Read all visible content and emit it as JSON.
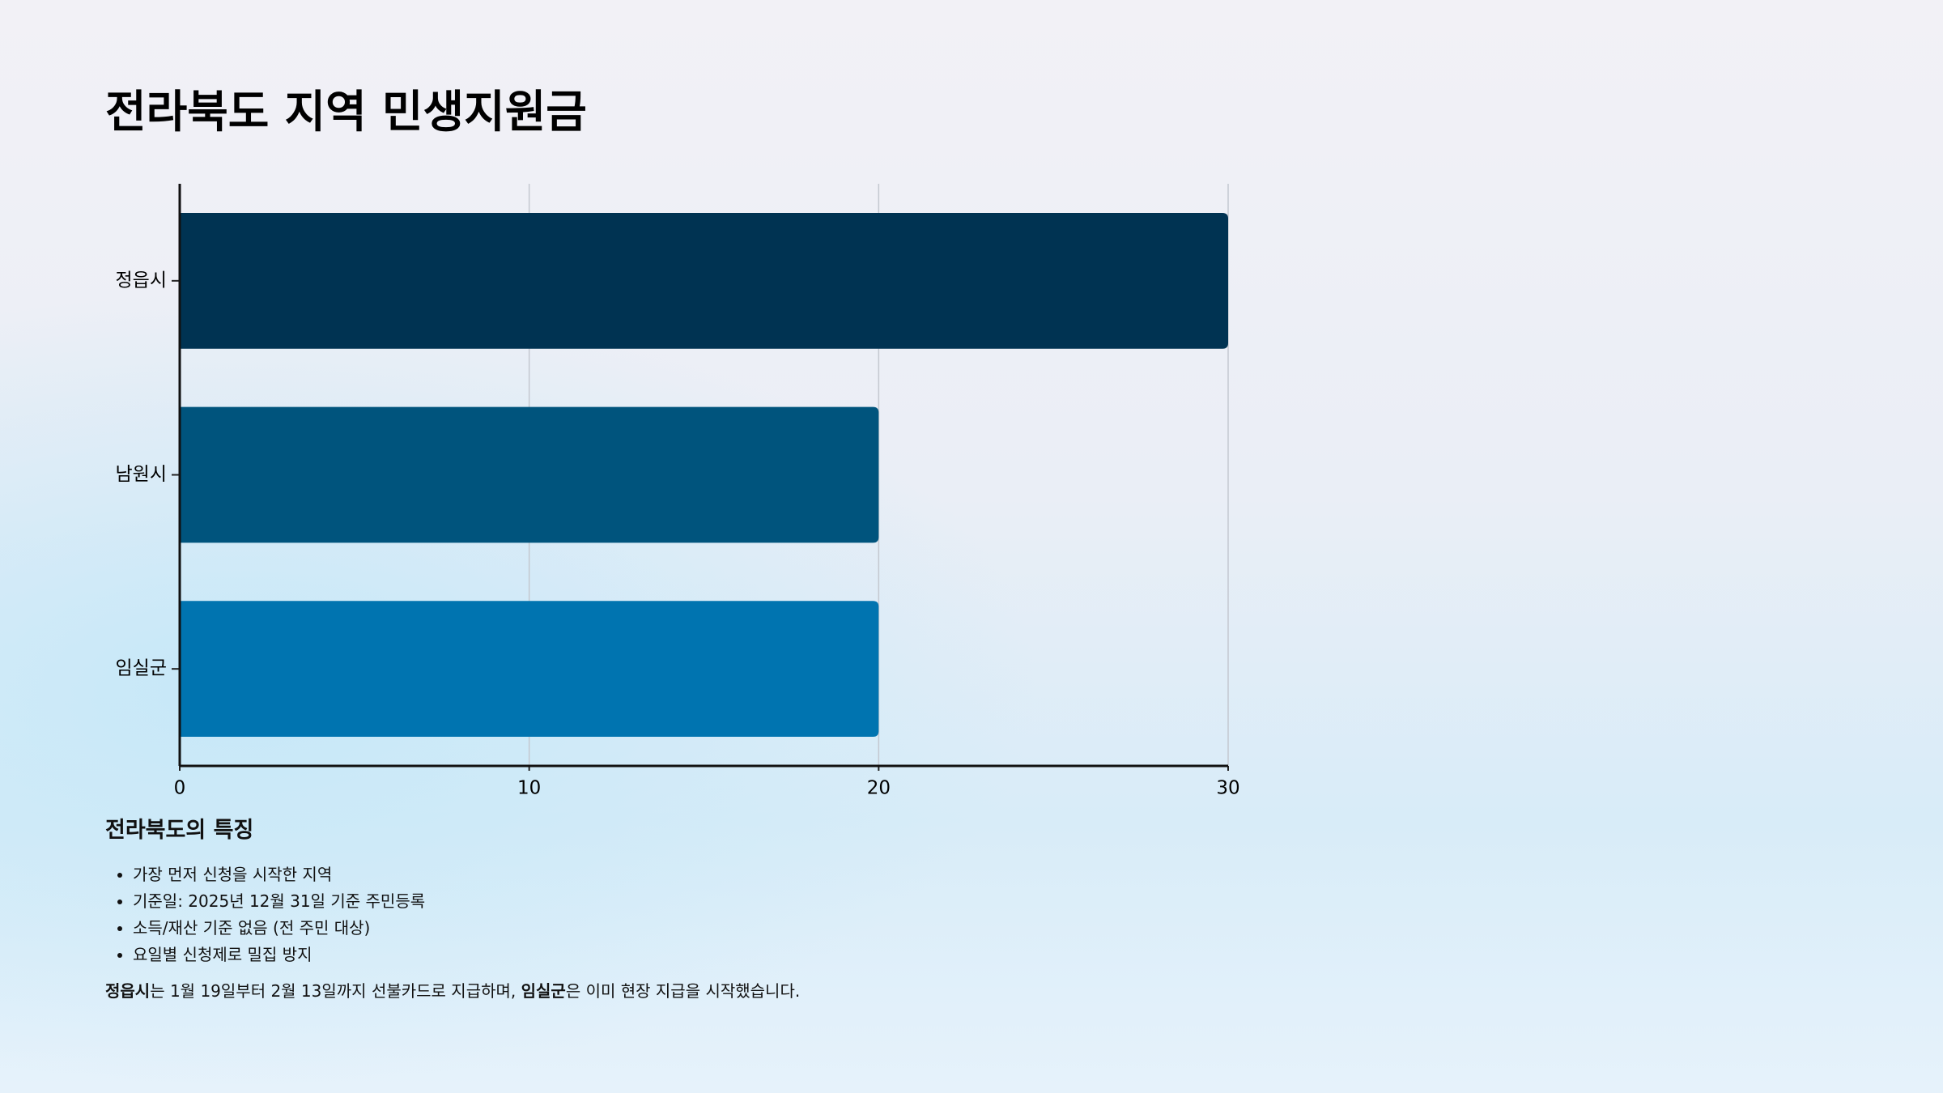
{
  "chart_data": {
    "type": "hbar",
    "title": "전라북도 지역 민생지원금",
    "categories": [
      "정읍시",
      "남원시",
      "임실군"
    ],
    "values": [
      30,
      20,
      20
    ],
    "colors": [
      "#003352",
      "#00547d",
      "#0074b0"
    ],
    "xlim": [
      0,
      30
    ],
    "xticks": [
      0,
      10,
      20,
      30
    ],
    "grid": true
  },
  "notes": {
    "heading": "전라북도의 특징",
    "bullets": [
      "가장 먼저 신청을 시작한 지역",
      "기준일: 2025년 12월 31일 기준 주민등록",
      "소득/재산 기준 없음 (전 주민 대상)",
      "요일별 신청제로 밀집 방지"
    ],
    "paragraph": [
      {
        "text": "정읍시",
        "bold": true
      },
      {
        "text": "는 1월 19일부터 2월 13일까지 선불카드로 지급하며, ",
        "bold": false
      },
      {
        "text": "임실군",
        "bold": true
      },
      {
        "text": "은 이미 현장 지급을 시작했습니다.",
        "bold": false
      }
    ]
  }
}
